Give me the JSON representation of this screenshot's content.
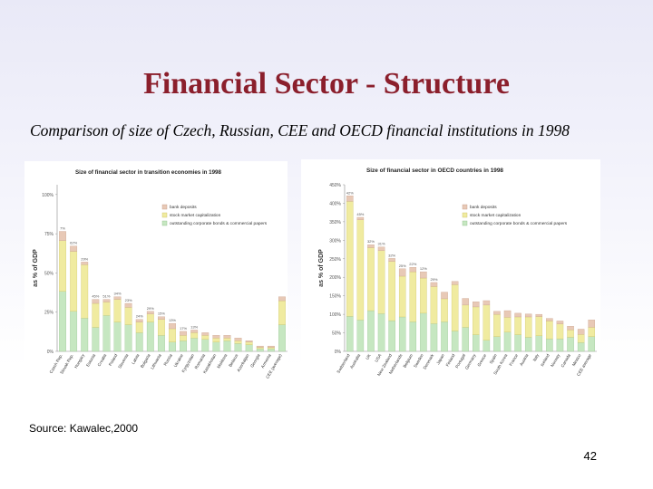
{
  "slide": {
    "title": "Financial Sector - Structure",
    "subtitle": "Comparison of size of  Czech, Russian, CEE and OECD financial institutions in 1998",
    "source": "Source: Kawalec,2000",
    "page_number": "42"
  },
  "colors": {
    "bank_deposits": "#e8c9b6",
    "stock_market": "#f0eba0",
    "outstanding_bonds": "#c6e7c1",
    "title": "#8b1f2c"
  },
  "chart_data": [
    {
      "type": "bar",
      "stacked": true,
      "title": "Size of financial sector in transition economies in 1998",
      "xlabel": "",
      "ylabel": "as % of GDP",
      "ylim": [
        0,
        125
      ],
      "yticks": [
        "0%",
        "25%",
        "50%",
        "75%",
        "100%"
      ],
      "legend_position": "top-right",
      "categories": [
        "Czech Rep.",
        "Slovak Rep.",
        "Hungary",
        "Estonia",
        "Croatia",
        "Poland",
        "Slovenia",
        "Latvia",
        "Bulgaria",
        "Lithuania",
        "Russia",
        "Ukraine",
        "Kyrgyzstan",
        "Romania",
        "Kazakhstan",
        "Moldova",
        "Belarus",
        "Azerbaijan",
        "Georgia",
        "Armenia",
        "CEE (average)"
      ],
      "series": [
        {
          "name": "outstanding corporate bonds & commercial papers",
          "values": [
            45,
            30,
            25,
            18,
            27,
            22,
            20,
            14,
            22,
            12,
            7,
            8,
            10,
            9,
            7,
            8,
            6,
            5,
            2,
            2,
            20
          ]
        },
        {
          "name": "stock market capitalization",
          "values": [
            38,
            45,
            40,
            18,
            10,
            17,
            13,
            8,
            6,
            12,
            10,
            4,
            4,
            3,
            3,
            2,
            2,
            2,
            1,
            1,
            18
          ]
        },
        {
          "name": "bank deposits",
          "values": [
            7,
            4,
            2,
            3,
            2,
            2,
            3,
            2,
            2,
            2,
            4,
            3,
            2,
            2,
            2,
            2,
            2,
            1,
            1,
            1,
            3
          ]
        }
      ],
      "data_labels": [
        "7%",
        "62%",
        "29%",
        "45%",
        "51%",
        "34%",
        "23%",
        "24%",
        "29%",
        "15%",
        "13%",
        "17%",
        "13%"
      ]
    },
    {
      "type": "bar",
      "stacked": true,
      "title": "Size of financial sector in OECD countries in 1998",
      "xlabel": "",
      "ylabel": "as % of GDP",
      "ylim": [
        0,
        450
      ],
      "yticks": [
        "0%",
        "50%",
        "100%",
        "150%",
        "200%",
        "250%",
        "300%",
        "350%",
        "400%",
        "450%"
      ],
      "legend_position": "top-right",
      "categories": [
        "Switzerland",
        "Australia",
        "UK",
        "USA",
        "New Zealand",
        "Netherlands",
        "Belgium",
        "Sweden",
        "Denmark",
        "Japan",
        "Finland",
        "Portugal",
        "Germany",
        "Greece",
        "Spain",
        "South Korea",
        "France",
        "Austria",
        "Italy",
        "Iceland",
        "Norway",
        "Canada",
        "Mexico",
        "CEE average"
      ],
      "series": [
        {
          "name": "outstanding corporate bonds & commercial papers",
          "values": [
            95,
            85,
            110,
            102,
            83,
            93,
            80,
            103,
            75,
            80,
            55,
            65,
            45,
            30,
            40,
            52,
            45,
            38,
            42,
            34,
            34,
            38,
            24,
            40
          ]
        },
        {
          "name": "stock market capitalization",
          "values": [
            310,
            270,
            170,
            170,
            160,
            110,
            135,
            95,
            100,
            62,
            125,
            60,
            75,
            95,
            60,
            40,
            48,
            55,
            52,
            48,
            40,
            20,
            22,
            25
          ]
        },
        {
          "name": "bank deposits",
          "values": [
            15,
            7,
            8,
            10,
            8,
            20,
            12,
            17,
            11,
            18,
            9,
            18,
            14,
            12,
            8,
            18,
            10,
            8,
            6,
            7,
            8,
            10,
            14,
            20
          ]
        }
      ],
      "data_labels": [
        "42%",
        "45%",
        "32%",
        "31%",
        "32%",
        "25%",
        "22%",
        "12%",
        "29%"
      ]
    }
  ]
}
